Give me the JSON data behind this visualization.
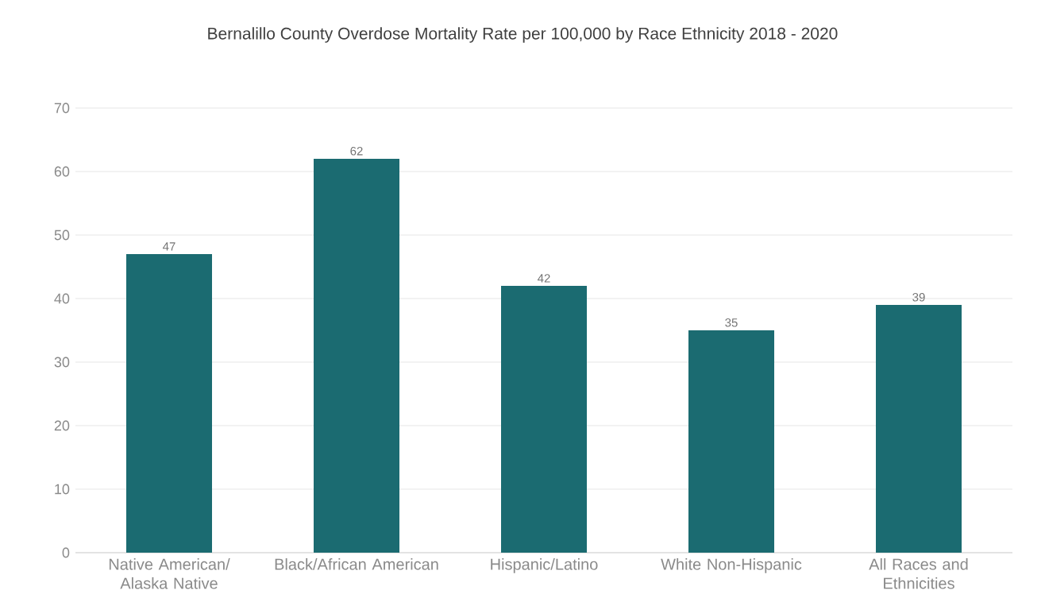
{
  "chart_data": {
    "type": "bar",
    "title": "Bernalillo County Overdose Mortality Rate per 100,000 by Race Ethnicity 2018 - 2020",
    "categories": [
      "Native American/ Alaska Native",
      "Black/African American",
      "Hispanic/Latino",
      "White Non-Hispanic",
      "All Races and Ethnicities"
    ],
    "values": [
      47,
      62,
      42,
      35,
      39
    ],
    "color": "#1b6b71",
    "ylim": [
      0,
      70
    ],
    "yticks": [
      0,
      10,
      20,
      30,
      40,
      50,
      60,
      70
    ],
    "grid": "y",
    "data_labels": true
  }
}
